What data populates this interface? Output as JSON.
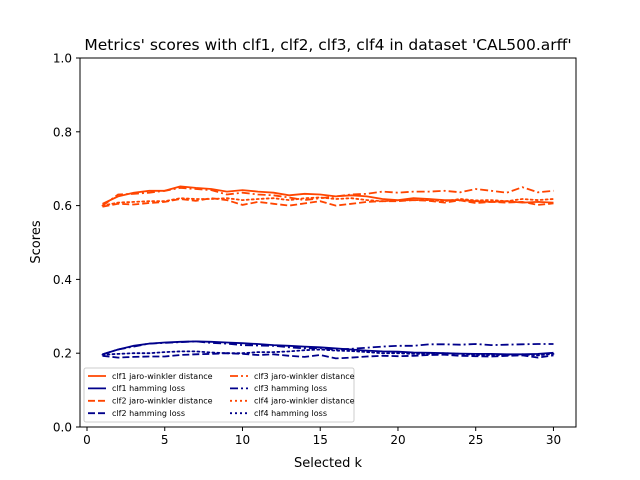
{
  "chart_data": {
    "type": "line",
    "title": "Metrics' scores with clf1, clf2, clf3, clf4 in dataset 'CAL500.arff'",
    "xlabel": "Selected k",
    "ylabel": "Scores",
    "xlim": [
      -0.45,
      31.45
    ],
    "ylim": [
      0.0,
      1.0
    ],
    "xticks": [
      0,
      5,
      10,
      15,
      20,
      25,
      30
    ],
    "yticks": [
      0.0,
      0.2,
      0.4,
      0.6,
      0.8,
      1.0
    ],
    "xtick_labels": [
      "0",
      "5",
      "10",
      "15",
      "20",
      "25",
      "30"
    ],
    "ytick_labels": [
      "0.0",
      "0.2",
      "0.4",
      "0.6",
      "0.8",
      "1.0"
    ],
    "grid": false,
    "legend_position": "lower-left",
    "legend_columns": 2,
    "x": [
      1,
      2,
      3,
      4,
      5,
      6,
      7,
      8,
      9,
      10,
      11,
      12,
      13,
      14,
      15,
      16,
      17,
      18,
      19,
      20,
      21,
      22,
      23,
      24,
      25,
      26,
      27,
      28,
      29,
      30
    ],
    "series": [
      {
        "name": "clf1 jaro-winkler distance",
        "color": "#ff4500",
        "dash": "solid",
        "values": [
          0.605,
          0.625,
          0.635,
          0.64,
          0.64,
          0.652,
          0.648,
          0.645,
          0.638,
          0.642,
          0.638,
          0.635,
          0.628,
          0.632,
          0.63,
          0.625,
          0.628,
          0.625,
          0.618,
          0.615,
          0.62,
          0.618,
          0.615,
          0.615,
          0.612,
          0.61,
          0.612,
          0.608,
          0.61,
          0.608
        ]
      },
      {
        "name": "clf1 hamming loss",
        "color": "#00008b",
        "dash": "solid",
        "values": [
          0.197,
          0.21,
          0.22,
          0.226,
          0.229,
          0.231,
          0.232,
          0.231,
          0.229,
          0.227,
          0.225,
          0.222,
          0.22,
          0.218,
          0.216,
          0.213,
          0.21,
          0.207,
          0.205,
          0.204,
          0.202,
          0.201,
          0.2,
          0.199,
          0.198,
          0.198,
          0.197,
          0.197,
          0.198,
          0.201
        ]
      },
      {
        "name": "clf2 jaro-winkler distance",
        "color": "#ff4500",
        "dash": "dashed",
        "values": [
          0.597,
          0.605,
          0.603,
          0.607,
          0.61,
          0.618,
          0.613,
          0.62,
          0.615,
          0.602,
          0.61,
          0.605,
          0.6,
          0.606,
          0.612,
          0.6,
          0.605,
          0.61,
          0.612,
          0.612,
          0.615,
          0.613,
          0.608,
          0.614,
          0.607,
          0.61,
          0.608,
          0.61,
          0.602,
          0.606
        ]
      },
      {
        "name": "clf2 hamming loss",
        "color": "#00008b",
        "dash": "dashed",
        "values": [
          0.193,
          0.188,
          0.19,
          0.191,
          0.191,
          0.195,
          0.197,
          0.198,
          0.2,
          0.198,
          0.195,
          0.197,
          0.193,
          0.19,
          0.195,
          0.186,
          0.188,
          0.191,
          0.193,
          0.192,
          0.193,
          0.195,
          0.196,
          0.193,
          0.192,
          0.191,
          0.193,
          0.194,
          0.188,
          0.194
        ]
      },
      {
        "name": "clf3 jaro-winkler distance",
        "color": "#ff4500",
        "dash": "dashdot",
        "values": [
          0.6,
          0.63,
          0.632,
          0.635,
          0.64,
          0.648,
          0.645,
          0.642,
          0.63,
          0.635,
          0.63,
          0.628,
          0.622,
          0.615,
          0.62,
          0.625,
          0.63,
          0.632,
          0.638,
          0.635,
          0.638,
          0.638,
          0.64,
          0.636,
          0.645,
          0.64,
          0.635,
          0.65,
          0.636,
          0.64
        ]
      },
      {
        "name": "clf3 hamming loss",
        "color": "#00008b",
        "dash": "dashdot",
        "values": [
          0.197,
          0.21,
          0.218,
          0.226,
          0.228,
          0.23,
          0.232,
          0.228,
          0.226,
          0.222,
          0.221,
          0.22,
          0.216,
          0.213,
          0.214,
          0.21,
          0.212,
          0.215,
          0.218,
          0.22,
          0.22,
          0.224,
          0.224,
          0.223,
          0.225,
          0.222,
          0.223,
          0.224,
          0.225,
          0.225
        ]
      },
      {
        "name": "clf4 jaro-winkler distance",
        "color": "#ff4500",
        "dash": "dotted",
        "values": [
          0.6,
          0.608,
          0.61,
          0.612,
          0.612,
          0.62,
          0.618,
          0.618,
          0.62,
          0.615,
          0.618,
          0.62,
          0.615,
          0.62,
          0.622,
          0.618,
          0.62,
          0.615,
          0.612,
          0.614,
          0.615,
          0.615,
          0.612,
          0.618,
          0.614,
          0.615,
          0.612,
          0.618,
          0.615,
          0.618
        ]
      },
      {
        "name": "clf4 hamming loss",
        "color": "#00008b",
        "dash": "dotted",
        "values": [
          0.196,
          0.198,
          0.2,
          0.2,
          0.203,
          0.205,
          0.205,
          0.202,
          0.2,
          0.2,
          0.203,
          0.203,
          0.205,
          0.208,
          0.21,
          0.207,
          0.206,
          0.203,
          0.2,
          0.2,
          0.198,
          0.198,
          0.2,
          0.198,
          0.195,
          0.195,
          0.195,
          0.197,
          0.194,
          0.198
        ]
      }
    ]
  }
}
